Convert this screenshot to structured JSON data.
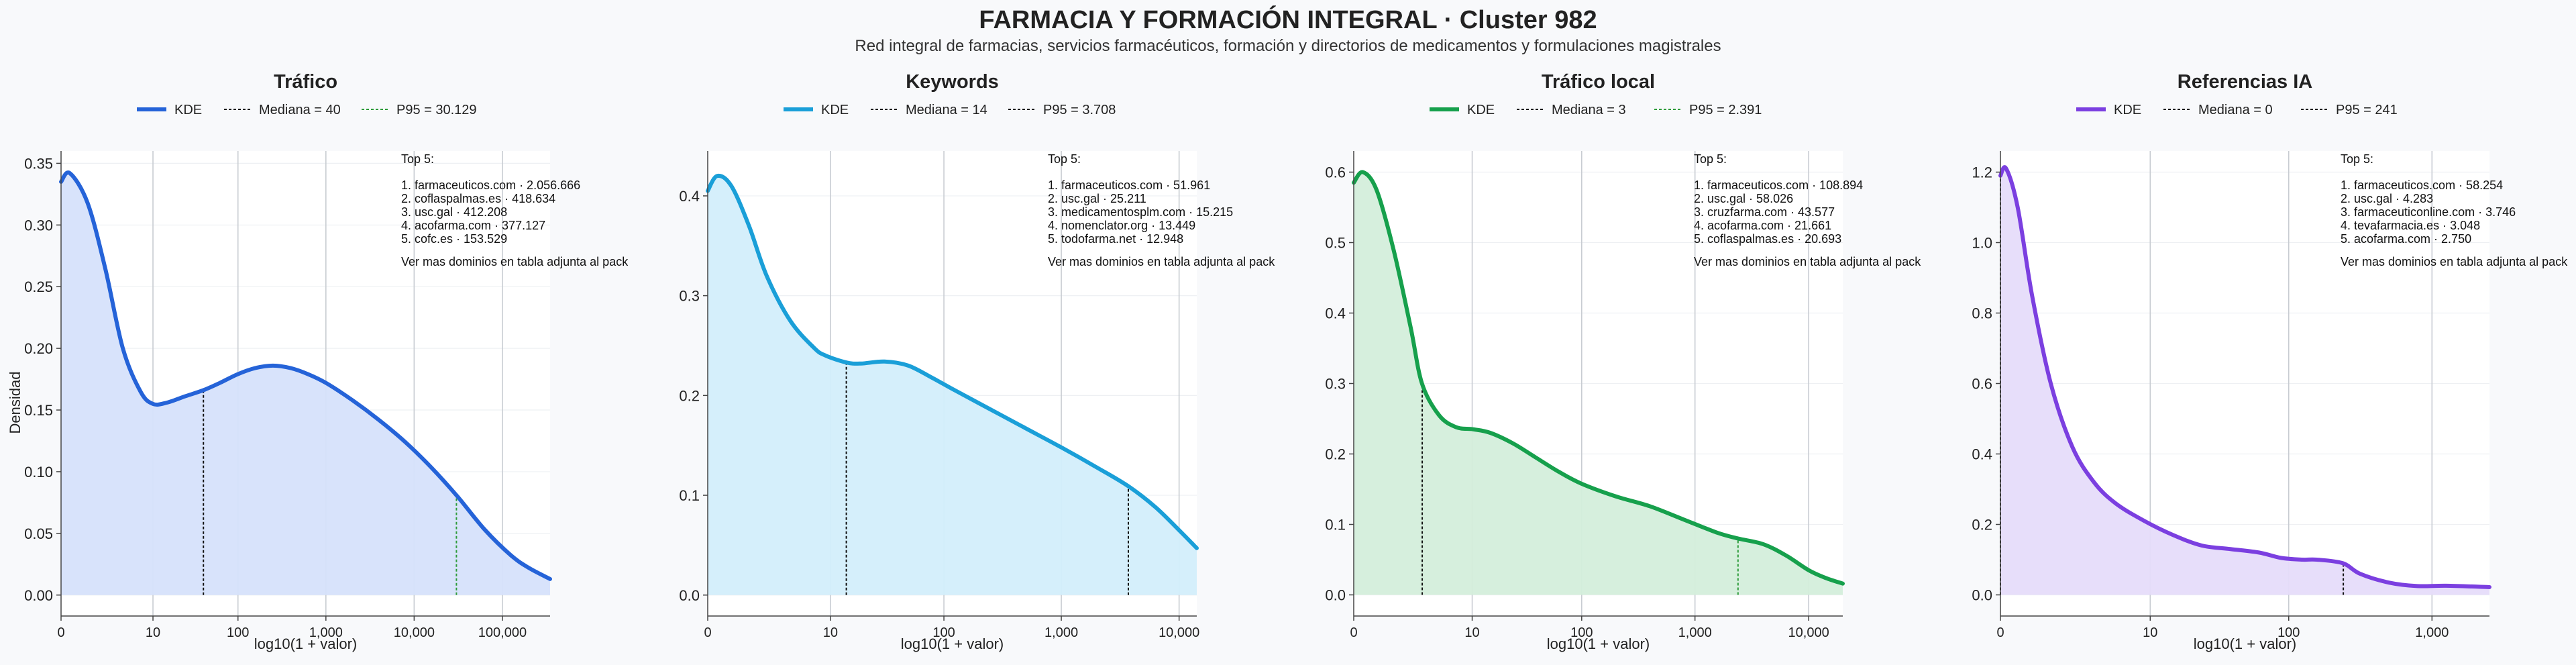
{
  "figure": {
    "title": "FARMACIA Y FORMACIÓN INTEGRAL · Cluster 982",
    "subtitle": "Red integral de farmacias, servicios farmacéuticos, formación y directorios de medicamentos y formulaciones magistrales",
    "ylabel": "Densidad",
    "colors": {
      "background": "#f8f9fb",
      "plot_bg": "#ffffff",
      "text": "#222222",
      "grid": "#e5e7eb",
      "median_line": "#111111"
    }
  },
  "chart_data": [
    {
      "type": "area",
      "title": "Tráfico",
      "xlabel": "log10(1 + valor)",
      "ylabel": "Densidad",
      "x_scale": "log10(1+x)",
      "color": "#2563d8",
      "fill": "#d6e1fb",
      "p95_color": "#2e9b3a",
      "xlim": [
        0,
        5.54
      ],
      "ylim": [
        -0.017,
        0.36
      ],
      "x_ticks": [
        0,
        10,
        100,
        1000,
        10000,
        100000
      ],
      "x_tick_labels": [
        "0",
        "10",
        "100",
        "1,000",
        "10,000",
        "100,000"
      ],
      "y_ticks": [
        0,
        0.05,
        0.1,
        0.15,
        0.2,
        0.25,
        0.3,
        0.35
      ],
      "y_tick_labels": [
        "0.00",
        "0.05",
        "0.10",
        "0.15",
        "0.20",
        "0.25",
        "0.30",
        "0.35"
      ],
      "kde": {
        "x": [
          0,
          0.1,
          0.3,
          0.5,
          0.7,
          0.9,
          1.04,
          1.2,
          1.4,
          1.61,
          1.8,
          2.0,
          2.2,
          2.4,
          2.6,
          2.8,
          3.0,
          3.3,
          3.6,
          3.9,
          4.2,
          4.49,
          4.8,
          5.1,
          5.3,
          5.54
        ],
        "y": [
          0.335,
          0.342,
          0.318,
          0.265,
          0.2,
          0.165,
          0.155,
          0.156,
          0.161,
          0.166,
          0.172,
          0.179,
          0.184,
          0.186,
          0.184,
          0.179,
          0.172,
          0.158,
          0.142,
          0.124,
          0.103,
          0.08,
          0.053,
          0.032,
          0.022,
          0.013
        ]
      },
      "median": {
        "value": 40,
        "label": "Mediana = 40"
      },
      "p95": {
        "value": 30129,
        "label": "P95 = 30.129"
      },
      "legend": {
        "kde_label": "KDE",
        "median_label": "Mediana = 40",
        "p95_label": "P95 = 30.129"
      },
      "top5": {
        "heading": "Top 5:",
        "items": [
          "1. farmaceuticos.com · 2.056.666",
          "2. coflaspalmas.es · 418.634",
          "3. usc.gal · 412.208",
          "4. acofarma.com · 377.127",
          "5. cofc.es · 153.529"
        ],
        "footer": "Ver mas dominios en tabla adjunta al pack"
      }
    },
    {
      "type": "area",
      "title": "Keywords",
      "xlabel": "log10(1 + valor)",
      "ylabel": "",
      "x_scale": "log10(1+x)",
      "color": "#1a9fd8",
      "fill": "#d3eefb",
      "p95_color": "#111111",
      "xlim": [
        0,
        4.15
      ],
      "ylim": [
        -0.021,
        0.445
      ],
      "x_ticks": [
        0,
        10,
        100,
        1000,
        10000
      ],
      "x_tick_labels": [
        "0",
        "10",
        "100",
        "1,000",
        "10,000"
      ],
      "y_ticks": [
        0,
        0.1,
        0.2,
        0.3,
        0.4
      ],
      "y_tick_labels": [
        "0.0",
        "0.1",
        "0.2",
        "0.3",
        "0.4"
      ],
      "kde": {
        "x": [
          0,
          0.08,
          0.2,
          0.35,
          0.5,
          0.7,
          0.9,
          1.0,
          1.18,
          1.3,
          1.5,
          1.7,
          1.9,
          2.1,
          2.4,
          2.7,
          3.0,
          3.3,
          3.57,
          3.8,
          4.0,
          4.15
        ],
        "y": [
          0.405,
          0.42,
          0.41,
          0.37,
          0.32,
          0.275,
          0.248,
          0.24,
          0.233,
          0.232,
          0.234,
          0.23,
          0.218,
          0.205,
          0.186,
          0.167,
          0.148,
          0.128,
          0.109,
          0.088,
          0.065,
          0.047
        ]
      },
      "median": {
        "value": 14,
        "label": "Mediana = 14"
      },
      "p95": {
        "value": 3708,
        "label": "P95 = 3.708"
      },
      "legend": {
        "kde_label": "KDE",
        "median_label": "Mediana = 14",
        "p95_label": "P95 = 3.708"
      },
      "top5": {
        "heading": "Top 5:",
        "items": [
          "1. farmaceuticos.com · 51.961",
          "2. usc.gal · 25.211",
          "3. medicamentosplm.com · 15.215",
          "4. nomenclator.org · 13.449",
          "5. todofarma.net · 12.948"
        ],
        "footer": "Ver mas dominios en tabla adjunta al pack"
      }
    },
    {
      "type": "area",
      "title": "Tráfico local",
      "xlabel": "log10(1 + valor)",
      "ylabel": "",
      "x_scale": "log10(1+x)",
      "color": "#16a04c",
      "fill": "#d4eedb",
      "p95_color": "#2e9b3a",
      "xlim": [
        0,
        4.3
      ],
      "ylim": [
        -0.03,
        0.63
      ],
      "x_ticks": [
        0,
        10,
        100,
        1000,
        10000
      ],
      "x_tick_labels": [
        "0",
        "10",
        "100",
        "1,000",
        "10,000"
      ],
      "y_ticks": [
        0,
        0.1,
        0.2,
        0.3,
        0.4,
        0.5,
        0.6
      ],
      "y_tick_labels": [
        "0.0",
        "0.1",
        "0.2",
        "0.3",
        "0.4",
        "0.5",
        "0.6"
      ],
      "kde": {
        "x": [
          0,
          0.08,
          0.2,
          0.35,
          0.5,
          0.6,
          0.75,
          0.9,
          1.05,
          1.2,
          1.4,
          1.6,
          1.8,
          2.0,
          2.3,
          2.6,
          2.9,
          3.2,
          3.38,
          3.6,
          3.8,
          4.0,
          4.15,
          4.3
        ],
        "y": [
          0.585,
          0.6,
          0.575,
          0.49,
          0.38,
          0.3,
          0.255,
          0.238,
          0.235,
          0.23,
          0.215,
          0.195,
          0.175,
          0.158,
          0.14,
          0.126,
          0.107,
          0.088,
          0.08,
          0.072,
          0.056,
          0.035,
          0.024,
          0.016
        ]
      },
      "median": {
        "value": 3,
        "label": "Mediana = 3"
      },
      "p95": {
        "value": 2391,
        "label": "P95 = 2.391"
      },
      "legend": {
        "kde_label": "KDE",
        "median_label": "Mediana = 3",
        "p95_label": "P95 = 2.391"
      },
      "top5": {
        "heading": "Top 5:",
        "items": [
          "1. farmaceuticos.com · 108.894",
          "2. usc.gal · 58.026",
          "3. cruzfarma.com · 43.577",
          "4. acofarma.com · 21.661",
          "5. coflaspalmas.es · 20.693"
        ],
        "footer": "Ver mas dominios en tabla adjunta al pack"
      }
    },
    {
      "type": "area",
      "title": "Referencias IA",
      "xlabel": "log10(1 + valor)",
      "ylabel": "",
      "x_scale": "log10(1+x)",
      "color": "#7b3fe0",
      "fill": "#e6dcfa",
      "p95_color": "#111111",
      "xlim": [
        0,
        3.4
      ],
      "ylim": [
        -0.06,
        1.26
      ],
      "x_ticks": [
        0,
        10,
        100,
        1000
      ],
      "x_tick_labels": [
        "0",
        "10",
        "100",
        "1,000"
      ],
      "y_ticks": [
        0,
        0.2,
        0.4,
        0.6,
        0.8,
        1.0,
        1.2
      ],
      "y_tick_labels": [
        "0.0",
        "0.2",
        "0.4",
        "0.6",
        "0.8",
        "1.0",
        "1.2"
      ],
      "kde": {
        "x": [
          0,
          0.04,
          0.12,
          0.22,
          0.35,
          0.5,
          0.65,
          0.8,
          1.0,
          1.2,
          1.4,
          1.6,
          1.8,
          1.95,
          2.1,
          2.2,
          2.38,
          2.5,
          2.7,
          2.9,
          3.1,
          3.4
        ],
        "y": [
          1.19,
          1.21,
          1.1,
          0.85,
          0.6,
          0.42,
          0.32,
          0.26,
          0.21,
          0.17,
          0.14,
          0.13,
          0.12,
          0.105,
          0.1,
          0.1,
          0.09,
          0.06,
          0.035,
          0.025,
          0.026,
          0.022
        ]
      },
      "median": {
        "value": 0,
        "label": "Mediana = 0"
      },
      "p95": {
        "value": 241,
        "label": "P95 = 241"
      },
      "legend": {
        "kde_label": "KDE",
        "median_label": "Mediana = 0",
        "p95_label": "P95 = 241"
      },
      "top5": {
        "heading": "Top 5:",
        "items": [
          "1. farmaceuticos.com · 58.254",
          "2. usc.gal · 4.283",
          "3. farmaceuticonline.com · 3.746",
          "4. tevafarmacia.es · 3.048",
          "5. acofarma.com · 2.750"
        ],
        "footer": "Ver mas dominios en tabla adjunta al pack"
      }
    }
  ]
}
